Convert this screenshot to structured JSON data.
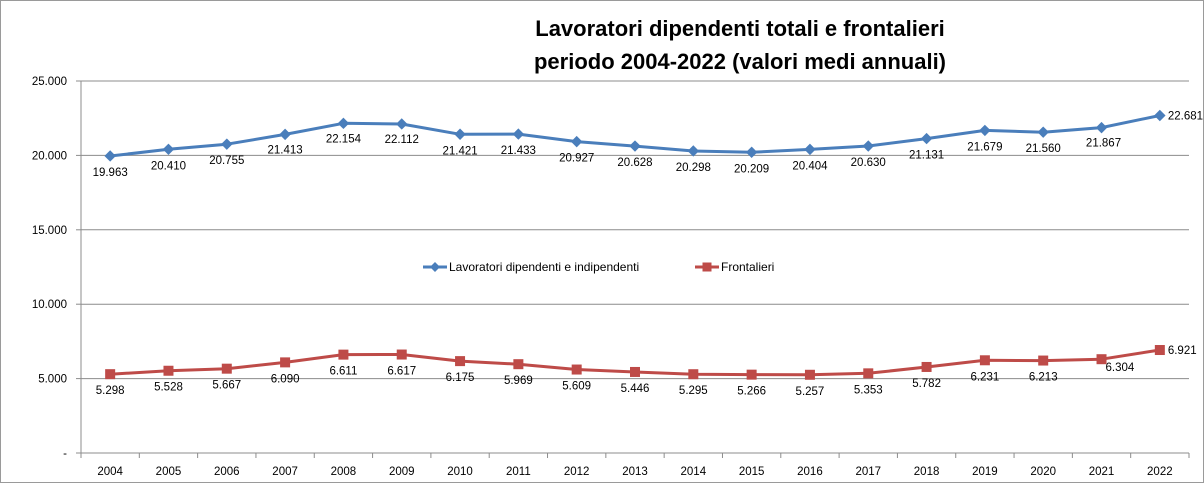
{
  "chart_data": {
    "type": "line",
    "title_line1": "Lavoratori dipendenti totali e frontalieri",
    "title_line2": "periodo 2004-2022 (valori medi annuali)",
    "categories": [
      "2004",
      "2005",
      "2006",
      "2007",
      "2008",
      "2009",
      "2010",
      "2011",
      "2012",
      "2013",
      "2014",
      "2015",
      "2016",
      "2017",
      "2018",
      "2019",
      "2020",
      "2021",
      "2022"
    ],
    "ylim": [
      0,
      25000
    ],
    "yticks": [
      {
        "value": 0,
        "label": "-"
      },
      {
        "value": 5000,
        "label": "5.000"
      },
      {
        "value": 10000,
        "label": "10.000"
      },
      {
        "value": 15000,
        "label": "15.000"
      },
      {
        "value": 20000,
        "label": "20.000"
      },
      {
        "value": 25000,
        "label": "25.000"
      }
    ],
    "grid": true,
    "legend_position": "center",
    "series": [
      {
        "name": "Lavoratori dipendenti e indipendenti",
        "color": "#4a7ebb",
        "marker": "diamond",
        "values": [
          19963,
          20410,
          20755,
          21413,
          22154,
          22112,
          21421,
          21433,
          20927,
          20628,
          20298,
          20209,
          20404,
          20630,
          21131,
          21679,
          21560,
          21867,
          22681
        ],
        "labels": [
          "19.963",
          "20.410",
          "20.755",
          "21.413",
          "22.154",
          "22.112",
          "21.421",
          "21.433",
          "20.927",
          "20.628",
          "20.298",
          "20.209",
          "20.404",
          "20.630",
          "21.131",
          "21.679",
          "21.560",
          "21.867",
          "22.681"
        ]
      },
      {
        "name": "Frontalieri",
        "color": "#be4b48",
        "marker": "square",
        "values": [
          5298,
          5528,
          5667,
          6090,
          6611,
          6617,
          6175,
          5969,
          5609,
          5446,
          5295,
          5266,
          5257,
          5353,
          5782,
          6231,
          6213,
          6304,
          6921
        ],
        "labels": [
          "5.298",
          "5.528",
          "5.667",
          "6.090",
          "6.611",
          "6.617",
          "6.175",
          "5.969",
          "5.609",
          "5.446",
          "5.295",
          "5.266",
          "5.257",
          "5.353",
          "5.782",
          "6.231",
          "6.213",
          "6.304",
          "6.921"
        ]
      }
    ]
  }
}
